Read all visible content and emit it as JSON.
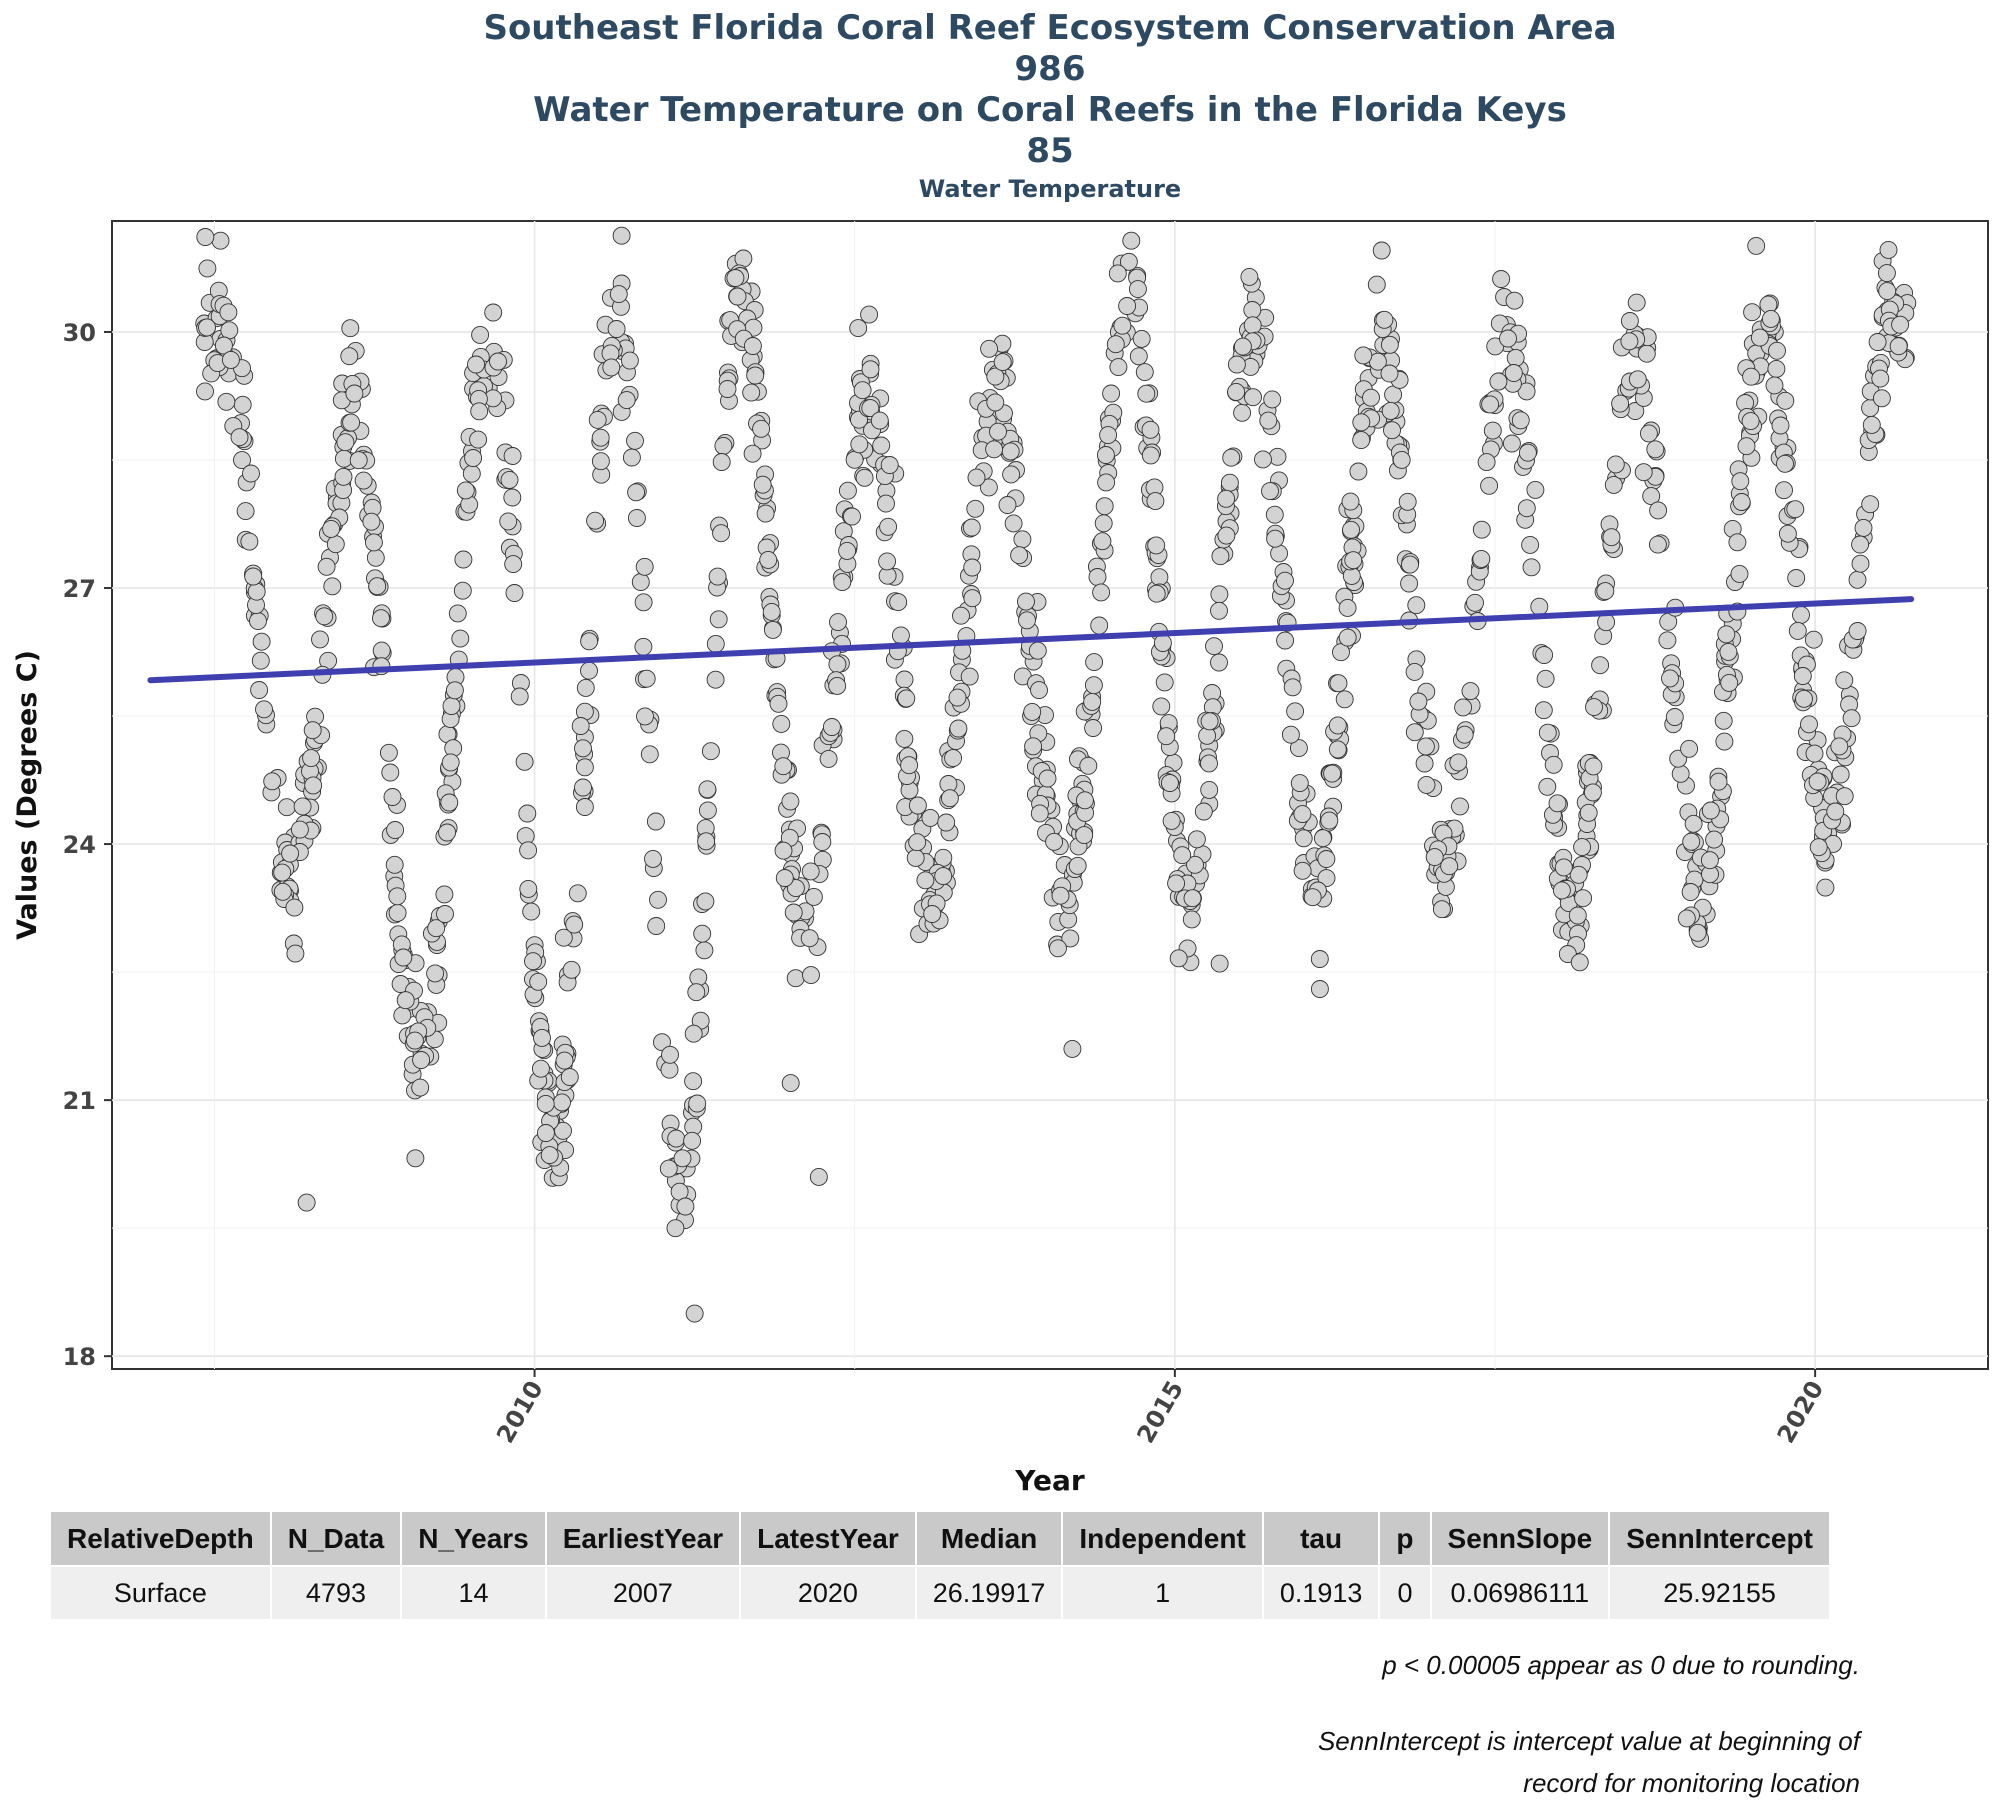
{
  "chart_data": {
    "type": "scatter",
    "title_lines": [
      "Southeast Florida Coral Reef Ecosystem Conservation Area",
      "986",
      "Water Temperature on Coral Reefs in the Florida Keys",
      "85"
    ],
    "subtitle": "Water Temperature",
    "xlabel": "Year",
    "ylabel": "Values (Degrees C)",
    "xlim": [
      2006.7,
      2021.35
    ],
    "ylim": [
      17.85,
      31.3
    ],
    "x_ticks": [
      2010,
      2015,
      2020
    ],
    "y_ticks": [
      18,
      21,
      24,
      27,
      30
    ],
    "grid": true,
    "point_color": "#d3d3d3",
    "point_stroke": "#333333",
    "trend_color": "#3F3FB0",
    "trend_line": {
      "x": [
        2007.0,
        2020.75
      ],
      "y": [
        25.92,
        26.87
      ]
    },
    "seasonal_profile": {
      "peaks": [
        [
          2007.55,
          30.0
        ],
        [
          2008.6,
          29.1
        ],
        [
          2009.65,
          30.0
        ],
        [
          2010.65,
          29.9
        ],
        [
          2011.6,
          30.4
        ],
        [
          2012.6,
          29.2
        ],
        [
          2013.6,
          29.3
        ],
        [
          2014.65,
          30.4
        ],
        [
          2015.6,
          30.1
        ],
        [
          2016.6,
          29.9
        ],
        [
          2017.6,
          29.9
        ],
        [
          2018.6,
          29.8
        ],
        [
          2019.6,
          30.0
        ],
        [
          2020.6,
          30.2
        ]
      ],
      "troughs": [
        [
          2008.1,
          23.7
        ],
        [
          2009.1,
          21.5
        ],
        [
          2010.15,
          20.6
        ],
        [
          2011.15,
          19.9
        ],
        [
          2012.1,
          23.0
        ],
        [
          2013.1,
          23.3
        ],
        [
          2014.15,
          23.4
        ],
        [
          2015.1,
          23.3
        ],
        [
          2016.1,
          23.6
        ],
        [
          2017.1,
          23.8
        ],
        [
          2018.1,
          23.2
        ],
        [
          2019.1,
          23.4
        ],
        [
          2020.1,
          24.3
        ]
      ]
    },
    "outliers": [
      [
        2008.22,
        19.8
      ],
      [
        2011.25,
        18.5
      ],
      [
        2011.1,
        19.5
      ],
      [
        2012.22,
        20.1
      ],
      [
        2012.0,
        21.2
      ],
      [
        2015.35,
        22.6
      ],
      [
        2014.2,
        21.6
      ]
    ]
  },
  "table": {
    "headers": [
      "RelativeDepth",
      "N_Data",
      "N_Years",
      "EarliestYear",
      "LatestYear",
      "Median",
      "Independent",
      "tau",
      "p",
      "SennSlope",
      "SennIntercept"
    ],
    "row": [
      "Surface",
      "4793",
      "14",
      "2007",
      "2020",
      "26.19917",
      "1",
      "0.1913",
      "0",
      "0.06986111",
      "25.92155"
    ]
  },
  "notes": {
    "line1": "p < 0.00005 appear as 0 due to rounding.",
    "line2a": "SennIntercept is intercept value at beginning of",
    "line2b": "record for monitoring location"
  }
}
